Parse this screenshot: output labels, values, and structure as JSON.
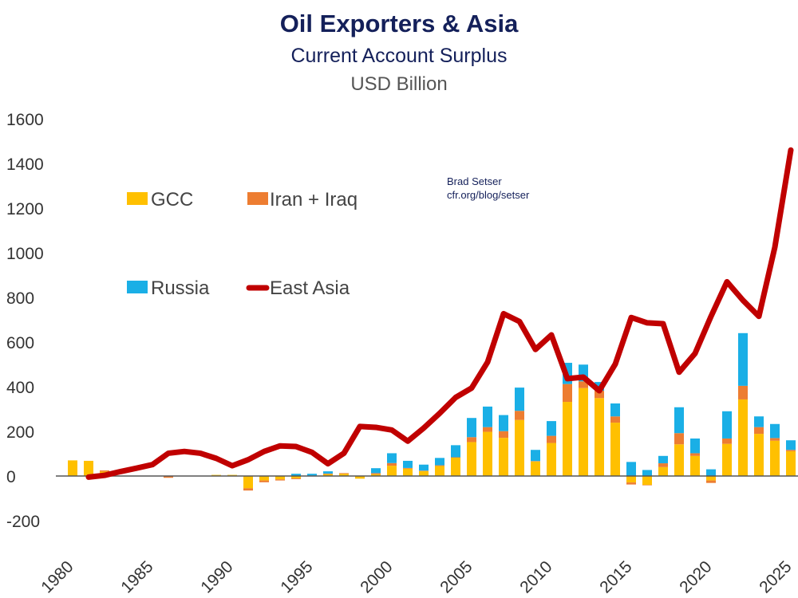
{
  "chart_data": {
    "type": "bar",
    "stacked": true,
    "title": "Oil Exporters & Asia",
    "subtitle": "Current Account Surplus",
    "ylabel": "USD Billion",
    "xlabel": "",
    "credit": [
      "Brad Setser",
      "cfr.org/blog/setser"
    ],
    "ylim": [
      -200,
      1600
    ],
    "yticks": [
      -200,
      0,
      200,
      400,
      600,
      800,
      1000,
      1200,
      1400,
      1600
    ],
    "xticks": [
      1980,
      1985,
      1990,
      1995,
      2000,
      2005,
      2010,
      2015,
      2020,
      2025
    ],
    "grid": false,
    "legend_position": "upper-left",
    "x": [
      1980,
      1981,
      1982,
      1983,
      1984,
      1985,
      1986,
      1987,
      1988,
      1989,
      1990,
      1991,
      1992,
      1993,
      1994,
      1995,
      1996,
      1997,
      1998,
      1999,
      2000,
      2001,
      2002,
      2003,
      2004,
      2005,
      2006,
      2007,
      2008,
      2009,
      2010,
      2011,
      2012,
      2013,
      2014,
      2015,
      2016,
      2017,
      2018,
      2019,
      2020,
      2021,
      2022,
      2023,
      2024,
      2025
    ],
    "series": [
      {
        "name": "GCC",
        "type": "bar",
        "color": "#FFC000",
        "values": [
          70,
          68,
          20,
          0,
          0,
          0,
          0,
          0,
          0,
          5,
          5,
          -55,
          -20,
          -15,
          -10,
          2,
          8,
          10,
          -12,
          8,
          46,
          33,
          22,
          45,
          82,
          152,
          198,
          171,
          251,
          65,
          148,
          332,
          394,
          349,
          239,
          -29,
          -40,
          40,
          142,
          90,
          -20,
          144,
          343,
          189,
          158,
          111
        ]
      },
      {
        "name": "Iran + Iraq",
        "type": "bar",
        "color": "#ED7D31",
        "values": [
          0,
          0,
          5,
          0,
          0,
          0,
          -8,
          0,
          0,
          0,
          0,
          -10,
          -8,
          -5,
          -4,
          0,
          3,
          3,
          0,
          5,
          12,
          3,
          2,
          3,
          2,
          22,
          21,
          30,
          41,
          2,
          32,
          80,
          30,
          33,
          28,
          -9,
          -2,
          17,
          50,
          12,
          -11,
          24,
          61,
          30,
          12,
          6
        ]
      },
      {
        "name": "Russia",
        "type": "bar",
        "color": "#1AAFE6",
        "values": [
          0,
          0,
          0,
          0,
          0,
          0,
          0,
          0,
          0,
          0,
          0,
          0,
          0,
          0,
          10,
          8,
          10,
          0,
          0,
          22,
          44,
          32,
          27,
          33,
          54,
          86,
          92,
          72,
          104,
          50,
          66,
          95,
          75,
          39,
          58,
          63,
          27,
          33,
          116,
          66,
          30,
          122,
          236,
          48,
          63,
          43
        ]
      },
      {
        "name": "East Asia",
        "type": "line",
        "color": "#C00000",
        "values": [
          null,
          -5,
          3,
          20,
          35,
          51,
          102,
          110,
          102,
          79,
          46,
          73,
          110,
          135,
          132,
          106,
          55,
          102,
          222,
          218,
          206,
          156,
          215,
          281,
          352,
          394,
          510,
          727,
          692,
          567,
          632,
          436,
          443,
          382,
          501,
          710,
          686,
          682,
          465,
          549,
          715,
          870,
          787,
          715,
          1025,
          1460
        ]
      }
    ]
  }
}
